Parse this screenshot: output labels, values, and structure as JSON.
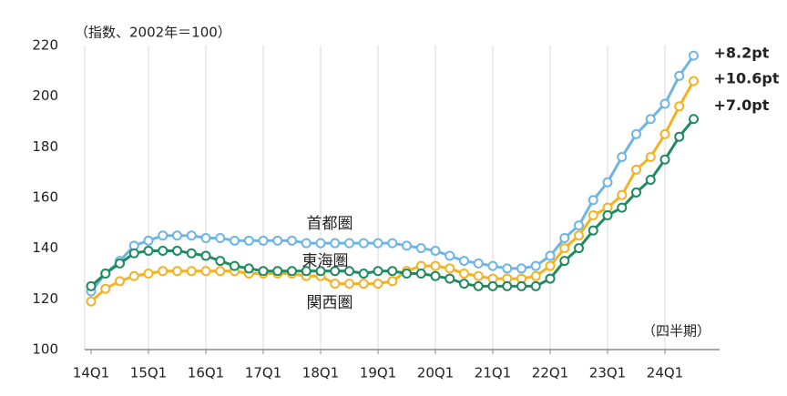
{
  "chart_data": {
    "type": "line",
    "y_axis_label": "（指数、2002年＝100）",
    "x_axis_label": "（四半期）",
    "categories": [
      "14Q1",
      null,
      null,
      null,
      "15Q1",
      null,
      null,
      null,
      "16Q1",
      null,
      null,
      null,
      "17Q1",
      null,
      null,
      null,
      "18Q1",
      null,
      null,
      null,
      "19Q1",
      null,
      null,
      null,
      "20Q1",
      null,
      null,
      null,
      "21Q1",
      null,
      null,
      null,
      "22Q1",
      null,
      null,
      null,
      "23Q1",
      null,
      null,
      null,
      "24Q1",
      null,
      null
    ],
    "series": [
      {
        "name": "首都圏",
        "color": "#6db5e5",
        "end_label": "+8.2pt",
        "values": [
          123,
          130,
          135,
          141,
          143,
          145,
          145,
          145,
          144,
          144,
          143,
          143,
          143,
          143,
          143,
          142,
          142,
          142,
          142,
          142,
          142,
          142,
          141,
          140,
          139,
          137,
          135,
          134,
          133,
          132,
          132,
          133,
          137,
          144,
          149,
          159,
          166,
          176,
          185,
          191,
          197,
          208,
          216
        ]
      },
      {
        "name": "関西圏",
        "color": "#f4b223",
        "end_label": "+10.6pt",
        "values": [
          119,
          124,
          127,
          129,
          130,
          131,
          131,
          131,
          131,
          131,
          131,
          130,
          130,
          130,
          130,
          129,
          129,
          126,
          126,
          126,
          126,
          127,
          131,
          133,
          133,
          132,
          130,
          129,
          128,
          128,
          128,
          129,
          133,
          140,
          145,
          153,
          156,
          161,
          171,
          176,
          185,
          196,
          206
        ]
      },
      {
        "name": "東海圏",
        "color": "#1e8a5e",
        "end_label": "+7.0pt",
        "values": [
          125,
          130,
          134,
          138,
          139,
          139,
          139,
          138,
          137,
          135,
          133,
          132,
          131,
          131,
          131,
          131,
          131,
          131,
          131,
          130,
          131,
          131,
          130,
          130,
          129,
          128,
          126,
          125,
          125,
          125,
          125,
          125,
          128,
          135,
          140,
          147,
          153,
          156,
          162,
          167,
          175,
          184,
          191
        ]
      }
    ],
    "ylim": [
      100,
      220
    ],
    "yticks": [
      100,
      120,
      140,
      160,
      180,
      200,
      220
    ],
    "grid": true
  }
}
